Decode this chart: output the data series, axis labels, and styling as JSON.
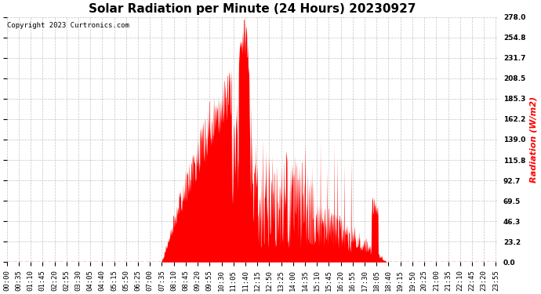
{
  "title": "Solar Radiation per Minute (24 Hours) 20230927",
  "ylabel": "Radiation (W/m2)",
  "ylabel_color": "#ff0000",
  "copyright_text": "Copyright 2023 Curtronics.com",
  "copyright_color": "#000000",
  "background_color": "#ffffff",
  "plot_bg_color": "#ffffff",
  "bar_color": "#ff0000",
  "grid_color": "#aaaaaa",
  "grid_style": "--",
  "ymax": 278.0,
  "yticks": [
    0.0,
    23.2,
    46.3,
    69.5,
    92.7,
    115.8,
    139.0,
    162.2,
    185.3,
    208.5,
    231.7,
    254.8,
    278.0
  ],
  "hline_color": "#ff0000",
  "hline_style": "--",
  "title_fontsize": 11,
  "tick_fontsize": 6.5,
  "ylabel_fontsize": 8
}
